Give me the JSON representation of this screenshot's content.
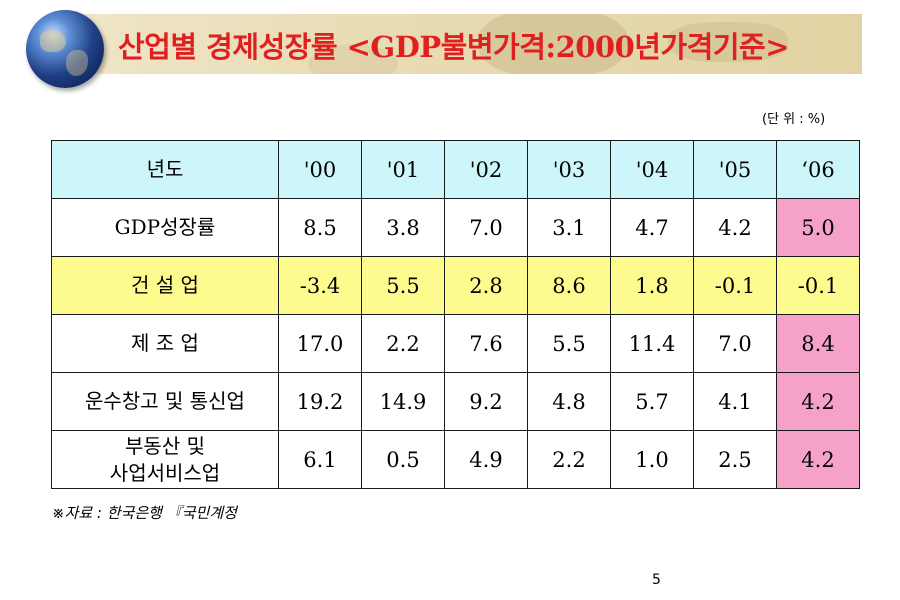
{
  "slide": {
    "title": "산업별 경제성장률 <GDP불변가격:2000년가격기준>",
    "unit": "(단 위 : %)",
    "source": "※자료 : 한국은행 『국민계정",
    "page_number": "5"
  },
  "table": {
    "header": {
      "label": "년도",
      "years": [
        "'00",
        "'01",
        "'02",
        "'03",
        "'04",
        "'05",
        "‘06"
      ]
    },
    "rows": [
      {
        "label": "GDP성장률",
        "values": [
          "8.5",
          "3.8",
          "7.0",
          "3.1",
          "4.7",
          "4.2",
          "5.0"
        ]
      },
      {
        "label": "건 설 업",
        "values": [
          "-3.4",
          "5.5",
          "2.8",
          "8.6",
          "1.8",
          "-0.1",
          "-0.1"
        ]
      },
      {
        "label": "제 조 업",
        "values": [
          "17.0",
          "2.2",
          "7.6",
          "5.5",
          "11.4",
          "7.0",
          "8.4"
        ]
      },
      {
        "label": "운수창고 및 통신업",
        "values": [
          "19.2",
          "14.9",
          "9.2",
          "4.8",
          "5.7",
          "4.1",
          "4.2"
        ]
      },
      {
        "label_line1": "부동산 및",
        "label_line2": "사업서비스업",
        "values": [
          "6.1",
          "0.5",
          "4.9",
          "2.2",
          "1.0",
          "2.5",
          "4.2"
        ]
      }
    ]
  },
  "colors": {
    "title": "#e02020",
    "header_row": "#cdf6fb",
    "highlight_row": "#fdfb8e",
    "highlight_column": "#f6a2c8",
    "banner": "#e8dcb4"
  },
  "icons": {
    "globe": "globe-icon"
  }
}
